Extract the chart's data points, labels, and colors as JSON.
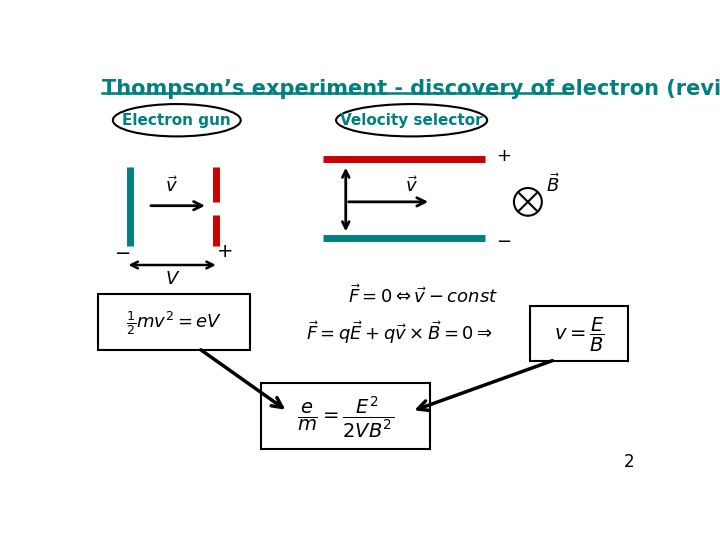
{
  "title": "Thompson’s experiment - discovery of electron (review)",
  "title_color": "#008080",
  "title_fontsize": 15,
  "bg_color": "#ffffff",
  "slide_number": "2",
  "label_electron_gun": "Electron gun",
  "label_velocity_selector": "Velocity selector",
  "teal_color": "#008080",
  "red_color": "#cc0000",
  "black_color": "#000000"
}
